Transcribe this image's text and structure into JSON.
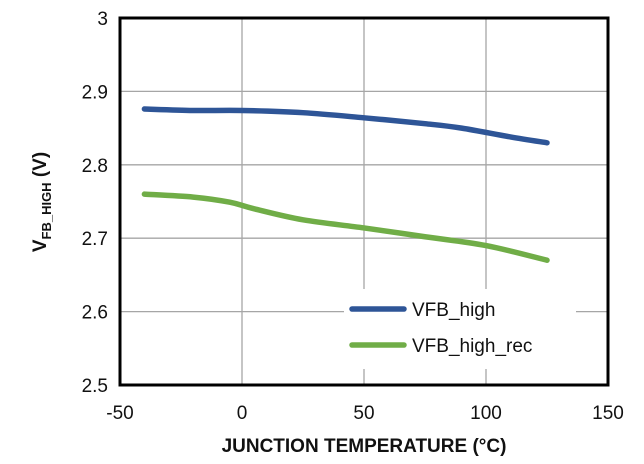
{
  "chart_data": {
    "type": "line",
    "title": "",
    "xlabel": "JUNCTION TEMPERATURE (°C)",
    "ylabel": {
      "main": "V",
      "subscript": "FB_HIGH",
      "unit": " (V)"
    },
    "xlim": [
      -50,
      150
    ],
    "ylim": [
      2.5,
      3.0
    ],
    "xticks": [
      "-50",
      "0",
      "50",
      "100",
      "150"
    ],
    "yticks": [
      "2.5",
      "2.6",
      "2.7",
      "2.8",
      "2.9",
      "3"
    ],
    "grid": true,
    "legend_position": "bottom-right",
    "series": [
      {
        "name": "VFB_high",
        "color": "#2e5597",
        "points": [
          [
            -40,
            2.876
          ],
          [
            -20,
            2.874
          ],
          [
            0,
            2.874
          ],
          [
            25,
            2.871
          ],
          [
            50,
            2.864
          ],
          [
            75,
            2.856
          ],
          [
            90,
            2.85
          ],
          [
            110,
            2.838
          ],
          [
            125,
            2.83
          ]
        ]
      },
      {
        "name": "VFB_high_rec",
        "color": "#70ad47",
        "points": [
          [
            -40,
            2.76
          ],
          [
            -20,
            2.756
          ],
          [
            -5,
            2.749
          ],
          [
            5,
            2.74
          ],
          [
            25,
            2.725
          ],
          [
            50,
            2.714
          ],
          [
            75,
            2.702
          ],
          [
            100,
            2.69
          ],
          [
            125,
            2.67
          ]
        ]
      }
    ]
  }
}
